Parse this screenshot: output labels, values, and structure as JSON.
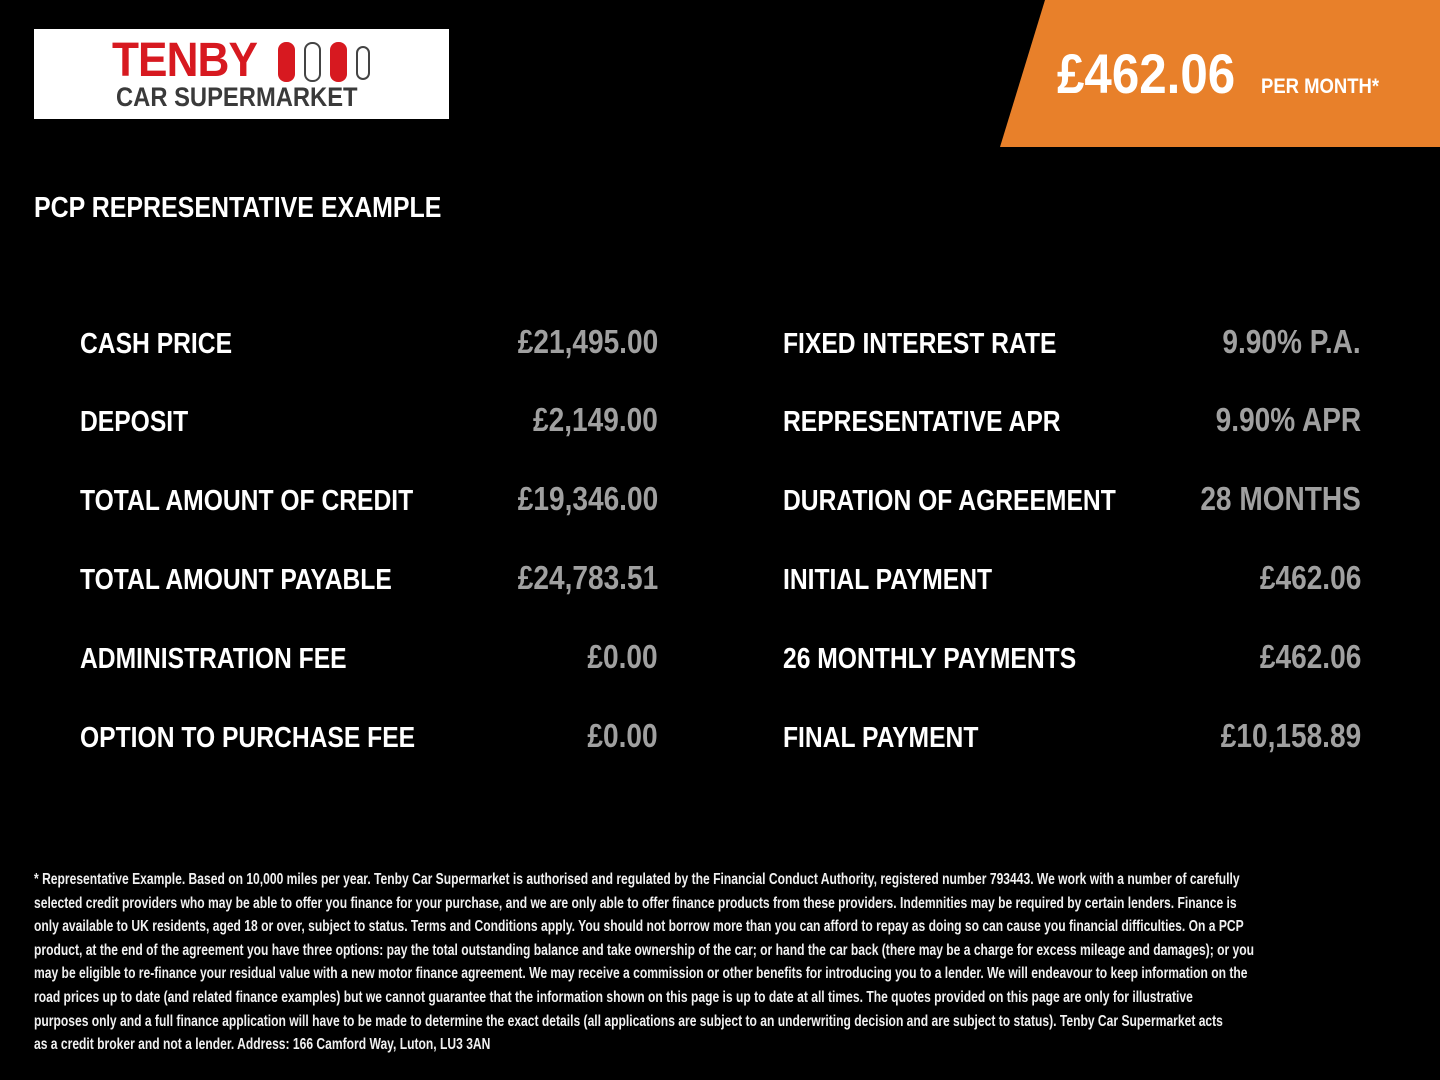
{
  "logo": {
    "line1": "TENBY",
    "line2": "CAR SUPERMARKET"
  },
  "banner": {
    "price": "£462.06",
    "suffix": "PER MONTH*",
    "color": "#e8802a"
  },
  "heading": "PCP REPRESENTATIVE EXAMPLE",
  "left_rows": [
    {
      "label": "CASH PRICE",
      "value": "£21,495.00"
    },
    {
      "label": "DEPOSIT",
      "value": "£2,149.00"
    },
    {
      "label": "TOTAL AMOUNT OF CREDIT",
      "value": "£19,346.00"
    },
    {
      "label": "TOTAL AMOUNT PAYABLE",
      "value": "£24,783.51"
    },
    {
      "label": "ADMINISTRATION FEE",
      "value": "£0.00"
    },
    {
      "label": "OPTION TO PURCHASE FEE",
      "value": "£0.00"
    }
  ],
  "right_rows": [
    {
      "label": "FIXED INTEREST RATE",
      "value": "9.90% P.A."
    },
    {
      "label": "REPRESENTATIVE APR",
      "value": "9.90% APR"
    },
    {
      "label": "DURATION OF AGREEMENT",
      "value": "28 MONTHS"
    },
    {
      "label": "INITIAL PAYMENT",
      "value": "£462.06"
    },
    {
      "label": "26 MONTHLY PAYMENTS",
      "value": "£462.06"
    },
    {
      "label": "FINAL PAYMENT",
      "value": "£10,158.89"
    }
  ],
  "fine_print": [
    "* Representative Example. Based on 10,000 miles per year. Tenby Car Supermarket is authorised and regulated by the Financial Conduct Authority, registered number 793443. We work with a number of carefully",
    "selected credit providers who may be able to offer you finance for your purchase, and we are only able to offer finance products from these providers. Indemnities may be required by certain lenders. Finance is",
    "only available to UK residents, aged 18 or over, subject to status. Terms and Conditions apply. You should not borrow more than you can afford to repay as doing so can cause you financial difficulties. On a PCP",
    "product, at the end of the agreement you have three options: pay the total outstanding balance and take ownership of the car; or hand the car back (there may be a charge for excess mileage and damages); or you",
    "may be eligible to re-finance your residual value with a new motor finance agreement. We may receive a commission or other benefits for introducing you to a lender. We will endeavour to keep information on the",
    "road prices up to date (and related finance examples) but we cannot guarantee that the information shown on this page is up to date at all times. The quotes provided on this page are only for illustrative",
    "purposes only and a full finance application will have to be made to determine the exact details (all applications are subject to an underwriting decision and are subject to status). Tenby Car Supermarket acts",
    "as a credit broker and not a lender. Address: 166 Camford Way, Luton, LU3 3AN"
  ]
}
